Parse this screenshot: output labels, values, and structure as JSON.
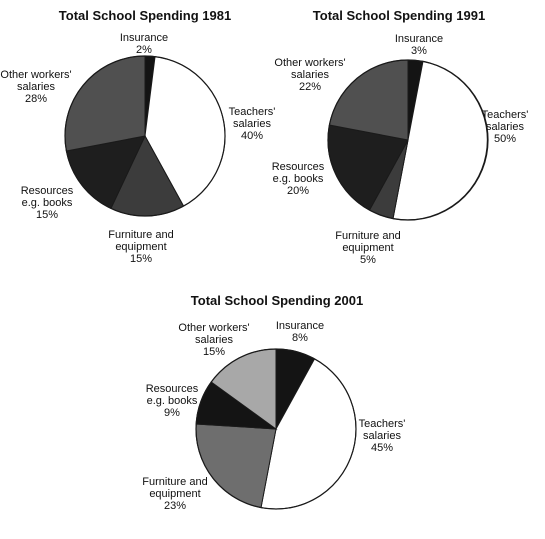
{
  "chart_data": [
    {
      "type": "pie",
      "title": "Total School Spending 1981",
      "slices": [
        {
          "label": [
            "Insurance"
          ],
          "value": 2,
          "value_label": "2%",
          "color": "#141414"
        },
        {
          "label": [
            "Teachers'",
            "salaries"
          ],
          "value": 40,
          "value_label": "40%",
          "color": "#ffffff"
        },
        {
          "label": [
            "Furniture and",
            "equipment"
          ],
          "value": 15,
          "value_label": "15%",
          "color": "#3c3c3c"
        },
        {
          "label": [
            "Resources",
            "e.g. books"
          ],
          "value": 15,
          "value_label": "15%",
          "color": "#1e1e1e"
        },
        {
          "label": [
            "Other workers'",
            "salaries"
          ],
          "value": 28,
          "value_label": "28%",
          "color": "#505050"
        }
      ]
    },
    {
      "type": "pie",
      "title": "Total School Spending 1991",
      "slices": [
        {
          "label": [
            "Insurance"
          ],
          "value": 3,
          "value_label": "3%",
          "color": "#141414"
        },
        {
          "label": [
            "Teachers'",
            "salaries"
          ],
          "value": 50,
          "value_label": "50%",
          "color": "#ffffff"
        },
        {
          "label": [
            "Furniture and",
            "equipment"
          ],
          "value": 5,
          "value_label": "5%",
          "color": "#3c3c3c"
        },
        {
          "label": [
            "Resources",
            "e.g. books"
          ],
          "value": 20,
          "value_label": "20%",
          "color": "#1e1e1e"
        },
        {
          "label": [
            "Other workers'",
            "salaries"
          ],
          "value": 22,
          "value_label": "22%",
          "color": "#505050"
        }
      ]
    },
    {
      "type": "pie",
      "title": "Total School Spending 2001",
      "slices": [
        {
          "label": [
            "Insurance"
          ],
          "value": 8,
          "value_label": "8%",
          "color": "#141414"
        },
        {
          "label": [
            "Teachers'",
            "salaries"
          ],
          "value": 45,
          "value_label": "45%",
          "color": "#ffffff"
        },
        {
          "label": [
            "Furniture and",
            "equipment"
          ],
          "value": 23,
          "value_label": "23%",
          "color": "#6e6e6e"
        },
        {
          "label": [
            "Resources",
            "e.g. books"
          ],
          "value": 9,
          "value_label": "9%",
          "color": "#141414"
        },
        {
          "label": [
            "Other workers'",
            "salaries"
          ],
          "value": 15,
          "value_label": "15%",
          "color": "#a8a8a8"
        }
      ]
    }
  ]
}
